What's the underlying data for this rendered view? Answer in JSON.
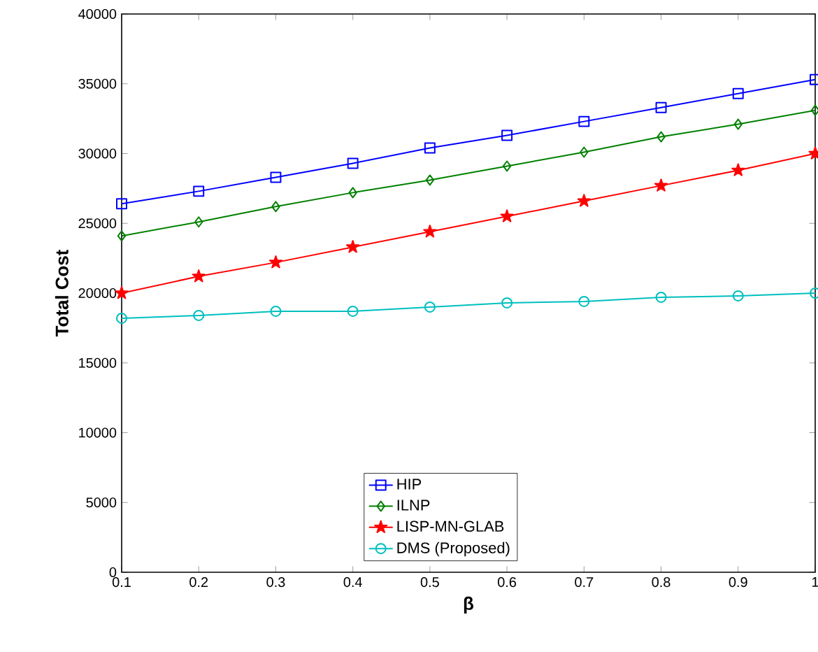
{
  "chart_data": {
    "type": "line",
    "xlabel": "β",
    "ylabel": "Total Cost",
    "x": [
      0.1,
      0.2,
      0.3,
      0.4,
      0.5,
      0.6,
      0.7,
      0.8,
      0.9,
      1
    ],
    "series": [
      {
        "name": "HIP",
        "color": "#0000ff",
        "marker": "square",
        "values": [
          26400,
          27300,
          28300,
          29300,
          30400,
          31300,
          32300,
          33300,
          34300,
          35300
        ]
      },
      {
        "name": "ILNP",
        "color": "#008000",
        "marker": "diamond",
        "values": [
          24100,
          25100,
          26200,
          27200,
          28100,
          29100,
          30100,
          31200,
          32100,
          33100
        ]
      },
      {
        "name": "LISP-MN-GLAB",
        "color": "#ff0000",
        "marker": "star",
        "values": [
          20000,
          21200,
          22200,
          23300,
          24400,
          25500,
          26600,
          27700,
          28800,
          30000
        ]
      },
      {
        "name": "DMS (Proposed)",
        "color": "#00bfbf",
        "marker": "circle",
        "values": [
          18200,
          18400,
          18700,
          18700,
          19000,
          19300,
          19400,
          19700,
          19800,
          20000
        ]
      }
    ],
    "xlim": [
      0.1,
      1
    ],
    "ylim": [
      0,
      40000
    ],
    "xticks": [
      0.1,
      0.2,
      0.3,
      0.4,
      0.5,
      0.6,
      0.7,
      0.8,
      0.9,
      1
    ],
    "yticks": [
      0,
      5000,
      10000,
      15000,
      20000,
      25000,
      30000,
      35000,
      40000
    ],
    "legend": "bottom",
    "grid": false,
    "line_style": "solid"
  }
}
